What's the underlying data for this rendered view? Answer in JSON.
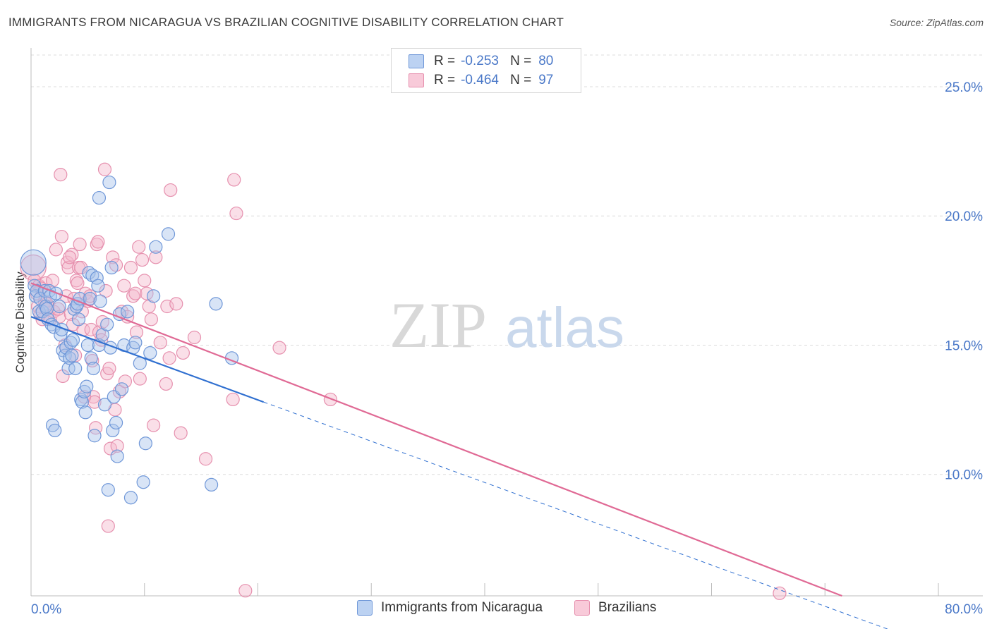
{
  "title": "IMMIGRANTS FROM NICARAGUA VS BRAZILIAN COGNITIVE DISABILITY CORRELATION CHART",
  "source": "Source: ZipAtlas.com",
  "watermark": {
    "zip": "ZIP",
    "atlas": "atlas"
  },
  "colors": {
    "blue_fill": "#a9c4ec",
    "blue_stroke": "#6f97d8",
    "blue_line": "#2f6fd0",
    "pink_fill": "#f4b8cb",
    "pink_stroke": "#e690ae",
    "pink_line": "#e06a95",
    "tick_label": "#4a78c8",
    "grid": "#dcdcdc"
  },
  "legend": {
    "rows": [
      {
        "r_label": "R =",
        "r_value": "-0.253",
        "n_label": "N =",
        "n_value": "80"
      },
      {
        "r_label": "R =",
        "r_value": "-0.464",
        "n_label": "N =",
        "n_value": "97"
      }
    ]
  },
  "bottom_legend": [
    "Immigrants from Nicaragua",
    "Brazilians"
  ],
  "chart_data": {
    "type": "scatter",
    "title": "IMMIGRANTS FROM NICARAGUA VS BRAZILIAN COGNITIVE DISABILITY CORRELATION CHART",
    "xlabel": "",
    "ylabel": "Cognitive Disability",
    "xlim": [
      0,
      80
    ],
    "ylim": [
      5.3,
      26.5
    ],
    "x_tick_labels": [
      "0.0%",
      "80.0%"
    ],
    "y_ticks": [
      10,
      15,
      20,
      25
    ],
    "y_tick_labels": [
      "10.0%",
      "15.0%",
      "20.0%",
      "25.0%"
    ],
    "grid": true,
    "legend_position": "top-center",
    "series": [
      {
        "name": "Immigrants from Nicaragua",
        "color": "#6f97d8",
        "trend": {
          "x_solid": [
            0,
            20.5
          ],
          "y_solid": [
            16.1,
            12.8
          ],
          "x_dashed": [
            20.5,
            80
          ],
          "y_dashed": [
            12.8,
            3.3
          ]
        },
        "points": [
          [
            0.2,
            18.2
          ],
          [
            0.3,
            17.3
          ],
          [
            0.4,
            16.9
          ],
          [
            0.5,
            17.1
          ],
          [
            0.7,
            16.3
          ],
          [
            0.8,
            16.8
          ],
          [
            1.0,
            16.3
          ],
          [
            1.2,
            17.1
          ],
          [
            1.3,
            16.5
          ],
          [
            1.4,
            16.4
          ],
          [
            1.5,
            16.0
          ],
          [
            1.6,
            17.1
          ],
          [
            1.7,
            16.9
          ],
          [
            1.8,
            15.8
          ],
          [
            1.9,
            11.9
          ],
          [
            2.0,
            15.7
          ],
          [
            2.1,
            11.7
          ],
          [
            2.2,
            17.0
          ],
          [
            2.5,
            16.5
          ],
          [
            2.6,
            15.4
          ],
          [
            2.8,
            14.8
          ],
          [
            3.0,
            14.6
          ],
          [
            3.1,
            14.9
          ],
          [
            3.3,
            14.1
          ],
          [
            3.4,
            14.5
          ],
          [
            3.5,
            15.1
          ],
          [
            3.6,
            14.6
          ],
          [
            3.7,
            15.2
          ],
          [
            3.8,
            16.4
          ],
          [
            3.9,
            14.1
          ],
          [
            4.0,
            16.5
          ],
          [
            4.1,
            16.6
          ],
          [
            4.2,
            16.0
          ],
          [
            4.3,
            16.8
          ],
          [
            4.4,
            12.9
          ],
          [
            4.5,
            12.8
          ],
          [
            4.7,
            13.2
          ],
          [
            4.8,
            12.4
          ],
          [
            4.9,
            13.4
          ],
          [
            5.0,
            15.0
          ],
          [
            5.1,
            17.8
          ],
          [
            5.2,
            16.8
          ],
          [
            5.3,
            14.5
          ],
          [
            5.4,
            17.7
          ],
          [
            5.5,
            14.1
          ],
          [
            5.6,
            11.5
          ],
          [
            5.8,
            17.6
          ],
          [
            5.9,
            17.3
          ],
          [
            6.0,
            15.0
          ],
          [
            6.1,
            16.7
          ],
          [
            6.3,
            15.4
          ],
          [
            6.5,
            12.7
          ],
          [
            6.7,
            15.8
          ],
          [
            6.8,
            9.4
          ],
          [
            7.0,
            14.9
          ],
          [
            7.1,
            18.0
          ],
          [
            7.2,
            11.7
          ],
          [
            7.3,
            13.0
          ],
          [
            7.5,
            12.0
          ],
          [
            7.6,
            10.7
          ],
          [
            7.8,
            16.2
          ],
          [
            8.0,
            13.3
          ],
          [
            8.2,
            15.0
          ],
          [
            8.5,
            16.3
          ],
          [
            8.8,
            9.1
          ],
          [
            9.0,
            14.9
          ],
          [
            9.2,
            15.1
          ],
          [
            9.6,
            14.3
          ],
          [
            9.9,
            9.7
          ],
          [
            10.1,
            11.2
          ],
          [
            10.5,
            14.7
          ],
          [
            10.8,
            16.9
          ],
          [
            11.0,
            18.8
          ],
          [
            12.1,
            19.3
          ],
          [
            15.9,
            9.6
          ],
          [
            16.3,
            16.6
          ],
          [
            17.7,
            14.5
          ],
          [
            6.9,
            21.3
          ],
          [
            6.0,
            20.7
          ],
          [
            2.7,
            15.6
          ]
        ]
      },
      {
        "name": "Brazilians",
        "color": "#e690ae",
        "trend": {
          "x_solid": [
            0,
            71.5
          ],
          "y_solid": [
            17.4,
            5.3
          ]
        },
        "points": [
          [
            0.2,
            18.0
          ],
          [
            0.3,
            17.5
          ],
          [
            0.5,
            17.0
          ],
          [
            0.6,
            16.5
          ],
          [
            0.7,
            17.3
          ],
          [
            0.8,
            16.2
          ],
          [
            1.0,
            16.0
          ],
          [
            1.2,
            16.7
          ],
          [
            1.3,
            17.4
          ],
          [
            1.5,
            16.5
          ],
          [
            1.7,
            16.0
          ],
          [
            1.9,
            17.5
          ],
          [
            2.0,
            16.3
          ],
          [
            2.2,
            18.7
          ],
          [
            2.5,
            16.1
          ],
          [
            2.6,
            21.6
          ],
          [
            2.7,
            19.2
          ],
          [
            2.8,
            13.8
          ],
          [
            3.0,
            15.0
          ],
          [
            3.1,
            16.9
          ],
          [
            3.2,
            18.2
          ],
          [
            3.3,
            18.0
          ],
          [
            3.5,
            16.2
          ],
          [
            3.6,
            18.5
          ],
          [
            3.7,
            15.8
          ],
          [
            3.8,
            16.8
          ],
          [
            3.9,
            14.6
          ],
          [
            4.0,
            17.5
          ],
          [
            4.1,
            17.4
          ],
          [
            4.2,
            18.0
          ],
          [
            4.3,
            18.9
          ],
          [
            4.4,
            18.0
          ],
          [
            4.5,
            16.3
          ],
          [
            4.6,
            15.6
          ],
          [
            4.8,
            17.0
          ],
          [
            5.0,
            16.7
          ],
          [
            5.2,
            16.9
          ],
          [
            5.3,
            15.6
          ],
          [
            5.4,
            14.4
          ],
          [
            5.5,
            13.0
          ],
          [
            5.6,
            12.8
          ],
          [
            5.7,
            11.8
          ],
          [
            5.8,
            18.9
          ],
          [
            6.0,
            15.5
          ],
          [
            6.2,
            15.2
          ],
          [
            6.3,
            15.9
          ],
          [
            6.5,
            21.8
          ],
          [
            6.6,
            17.1
          ],
          [
            6.7,
            13.9
          ],
          [
            6.8,
            8.0
          ],
          [
            6.9,
            14.1
          ],
          [
            7.0,
            11.0
          ],
          [
            7.2,
            18.4
          ],
          [
            7.4,
            12.5
          ],
          [
            7.5,
            18.1
          ],
          [
            7.6,
            11.1
          ],
          [
            7.8,
            13.2
          ],
          [
            8.0,
            16.3
          ],
          [
            8.2,
            17.3
          ],
          [
            8.3,
            13.6
          ],
          [
            8.5,
            16.1
          ],
          [
            8.8,
            18.0
          ],
          [
            9.0,
            16.9
          ],
          [
            9.2,
            17.0
          ],
          [
            9.3,
            15.5
          ],
          [
            9.5,
            18.8
          ],
          [
            9.6,
            13.7
          ],
          [
            9.8,
            18.3
          ],
          [
            10.0,
            17.5
          ],
          [
            10.2,
            17.0
          ],
          [
            10.4,
            16.5
          ],
          [
            10.6,
            16.0
          ],
          [
            10.8,
            11.9
          ],
          [
            11.0,
            18.4
          ],
          [
            11.4,
            15.1
          ],
          [
            11.9,
            13.5
          ],
          [
            12.0,
            16.5
          ],
          [
            12.2,
            14.5
          ],
          [
            12.3,
            21.0
          ],
          [
            13.2,
            11.6
          ],
          [
            13.4,
            14.7
          ],
          [
            14.4,
            15.3
          ],
          [
            15.4,
            10.6
          ],
          [
            17.8,
            12.9
          ],
          [
            17.9,
            21.4
          ],
          [
            18.1,
            20.1
          ],
          [
            18.9,
            5.5
          ],
          [
            21.9,
            14.9
          ],
          [
            26.4,
            12.9
          ],
          [
            66.0,
            5.4
          ],
          [
            2.4,
            16.4
          ],
          [
            1.4,
            16.6
          ],
          [
            0.9,
            17.2
          ],
          [
            4.7,
            13.0
          ],
          [
            3.4,
            18.4
          ],
          [
            5.9,
            19.0
          ],
          [
            12.8,
            16.6
          ]
        ]
      }
    ]
  }
}
